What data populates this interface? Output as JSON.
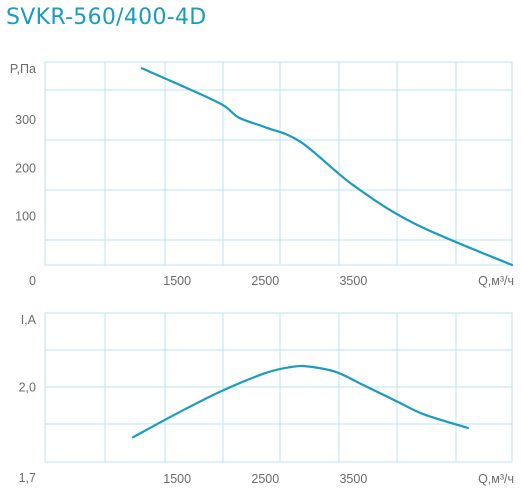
{
  "title": "SVKR-560/400-4D",
  "colors": {
    "title": "#1a9cbf",
    "curve": "#1a9cbf",
    "grid": "#b9e4f2",
    "tick_text": "#6c6c6c"
  },
  "chart_data": [
    {
      "type": "line",
      "ylabel": "P,Па",
      "xlabel": "Q,м³/ч",
      "xlim": [
        0,
        5300
      ],
      "ylim": [
        0,
        420
      ],
      "x_ticks": [
        1500,
        2500,
        3500
      ],
      "y_ticks": [
        0,
        100,
        200,
        300
      ],
      "x_tick_labels": [
        "1500",
        "2500",
        "3500"
      ],
      "y_tick_labels": [
        "0",
        "100",
        "200",
        "300"
      ],
      "grid": true,
      "series": [
        {
          "x": [
            1100,
            1500,
            2000,
            2200,
            2500,
            2900,
            3500,
            4200,
            5300
          ],
          "y": [
            407,
            375,
            333,
            305,
            285,
            255,
            165,
            85,
            0
          ]
        }
      ]
    },
    {
      "type": "line",
      "ylabel": "I,A",
      "xlabel": "Q,м³/ч",
      "xlim": [
        0,
        5300
      ],
      "ylim": [
        1.7,
        2.3
      ],
      "x_ticks": [
        1500,
        2500,
        3500
      ],
      "y_ticks": [
        1.7,
        2.0
      ],
      "x_tick_labels": [
        "1500",
        "2500",
        "3500"
      ],
      "y_tick_labels": [
        "1,7",
        "2,0"
      ],
      "grid": true,
      "series": [
        {
          "x": [
            1000,
            1500,
            2000,
            2500,
            2800,
            3000,
            3300,
            3600,
            4000,
            4300,
            4800
          ],
          "y": [
            1.8,
            1.896,
            1.985,
            2.058,
            2.083,
            2.084,
            2.063,
            2.012,
            1.943,
            1.892,
            1.837
          ]
        }
      ]
    }
  ]
}
